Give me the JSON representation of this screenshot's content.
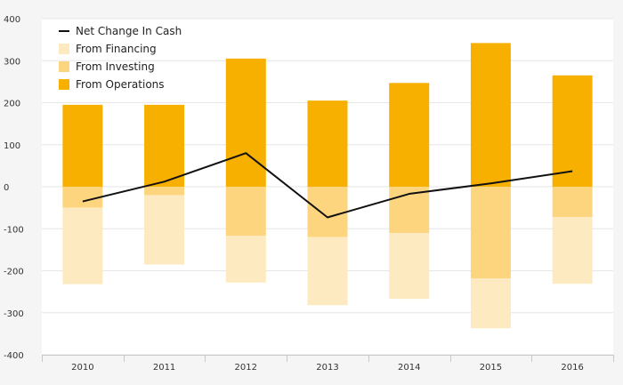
{
  "chart_data": {
    "type": "bar",
    "title": "",
    "xlabel": "",
    "ylabel": "",
    "categories": [
      "2010",
      "2011",
      "2012",
      "2013",
      "2014",
      "2015",
      "2016"
    ],
    "ylim": [
      -400,
      400
    ],
    "yticks": [
      "400",
      "300",
      "200",
      "100",
      "0",
      "-100",
      "-200",
      "-300",
      "-400"
    ],
    "stacked": true,
    "series": [
      {
        "name": "From Operations",
        "type": "bar",
        "color": "#f7b000",
        "values": [
          195,
          195,
          305,
          205,
          247,
          342,
          265
        ]
      },
      {
        "name": "From Investing",
        "type": "bar",
        "color": "#fdd57f",
        "values": [
          -50,
          -20,
          -117,
          -120,
          -110,
          -218,
          -72
        ]
      },
      {
        "name": "From Financing",
        "type": "bar",
        "color": "#feeac0",
        "values": [
          -182,
          -165,
          -111,
          -162,
          -157,
          -119,
          -159
        ]
      },
      {
        "name": "Net Change In Cash",
        "type": "line",
        "color": "#111111",
        "values": [
          -35,
          12,
          80,
          -73,
          -17,
          8,
          37
        ]
      }
    ],
    "legend": {
      "position": "top-left",
      "items": [
        {
          "label": "Net Change In Cash",
          "kind": "line",
          "color": "#111111"
        },
        {
          "label": "From Financing",
          "kind": "box",
          "color": "#feeac0"
        },
        {
          "label": "From Investing",
          "kind": "box",
          "color": "#fdd57f"
        },
        {
          "label": "From Operations",
          "kind": "box",
          "color": "#f7b000"
        }
      ]
    },
    "grid": true
  }
}
